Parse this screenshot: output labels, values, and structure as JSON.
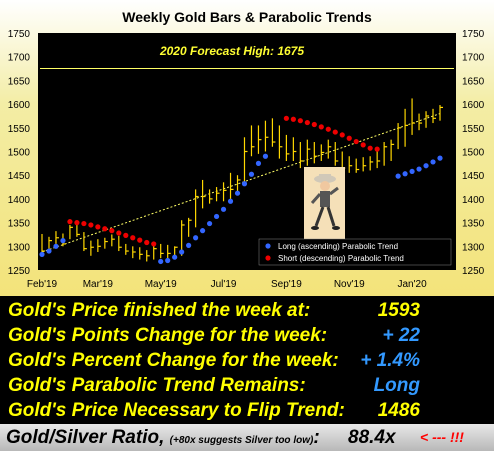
{
  "chart_data": {
    "type": "line",
    "title": "Weekly Gold Bars & Parabolic Trends",
    "annotation": "2020 Forecast High:  1675",
    "forecast_high": 1675,
    "ylim": [
      1250,
      1750
    ],
    "yticks": [
      1250,
      1300,
      1350,
      1400,
      1450,
      1500,
      1550,
      1600,
      1650,
      1700,
      1750
    ],
    "xticks": [
      {
        "label": "Feb'19",
        "week": 0
      },
      {
        "label": "Mar'19",
        "week": 8
      },
      {
        "label": "May'19",
        "week": 17
      },
      {
        "label": "Jul'19",
        "week": 26
      },
      {
        "label": "Sep'19",
        "week": 35
      },
      {
        "label": "Nov'19",
        "week": 44
      },
      {
        "label": "Jan'20",
        "week": 53
      }
    ],
    "legend": {
      "placement": "bottom-right",
      "entries": [
        {
          "label": "Long (ascending) Parabolic Trend",
          "color": "#3366ff"
        },
        {
          "label": "Short (descending) Parabolic Trend",
          "color": "#ee0000"
        }
      ]
    },
    "bars": [
      {
        "week": 0,
        "high": 1326,
        "low": 1282,
        "close": 1290
      },
      {
        "week": 1,
        "high": 1320,
        "low": 1295,
        "close": 1312
      },
      {
        "week": 2,
        "high": 1332,
        "low": 1305,
        "close": 1318
      },
      {
        "week": 3,
        "high": 1327,
        "low": 1300,
        "close": 1305
      },
      {
        "week": 4,
        "high": 1345,
        "low": 1315,
        "close": 1340
      },
      {
        "week": 5,
        "high": 1345,
        "low": 1320,
        "close": 1325
      },
      {
        "week": 6,
        "high": 1330,
        "low": 1290,
        "close": 1295
      },
      {
        "week": 7,
        "high": 1312,
        "low": 1280,
        "close": 1298
      },
      {
        "week": 8,
        "high": 1315,
        "low": 1288,
        "close": 1300
      },
      {
        "week": 9,
        "high": 1318,
        "low": 1295,
        "close": 1310
      },
      {
        "week": 10,
        "high": 1325,
        "low": 1300,
        "close": 1315
      },
      {
        "week": 11,
        "high": 1322,
        "low": 1290,
        "close": 1298
      },
      {
        "week": 12,
        "high": 1305,
        "low": 1282,
        "close": 1290
      },
      {
        "week": 13,
        "high": 1300,
        "low": 1275,
        "close": 1288
      },
      {
        "week": 14,
        "high": 1298,
        "low": 1272,
        "close": 1283
      },
      {
        "week": 15,
        "high": 1292,
        "low": 1268,
        "close": 1280
      },
      {
        "week": 16,
        "high": 1302,
        "low": 1272,
        "close": 1295
      },
      {
        "week": 17,
        "high": 1305,
        "low": 1275,
        "close": 1285
      },
      {
        "week": 18,
        "high": 1303,
        "low": 1268,
        "close": 1285
      },
      {
        "week": 19,
        "high": 1300,
        "low": 1275,
        "close": 1298
      },
      {
        "week": 20,
        "high": 1355,
        "low": 1280,
        "close": 1345
      },
      {
        "week": 21,
        "high": 1360,
        "low": 1320,
        "close": 1355
      },
      {
        "week": 22,
        "high": 1420,
        "low": 1340,
        "close": 1405
      },
      {
        "week": 23,
        "high": 1440,
        "low": 1380,
        "close": 1405
      },
      {
        "week": 24,
        "high": 1420,
        "low": 1390,
        "close": 1400
      },
      {
        "week": 25,
        "high": 1425,
        "low": 1395,
        "close": 1412
      },
      {
        "week": 26,
        "high": 1435,
        "low": 1395,
        "close": 1418
      },
      {
        "week": 27,
        "high": 1455,
        "low": 1400,
        "close": 1420
      },
      {
        "week": 28,
        "high": 1450,
        "low": 1410,
        "close": 1440
      },
      {
        "week": 29,
        "high": 1530,
        "low": 1430,
        "close": 1500
      },
      {
        "week": 30,
        "high": 1555,
        "low": 1490,
        "close": 1510
      },
      {
        "week": 31,
        "high": 1555,
        "low": 1495,
        "close": 1525
      },
      {
        "week": 32,
        "high": 1565,
        "low": 1500,
        "close": 1530
      },
      {
        "week": 33,
        "high": 1570,
        "low": 1510,
        "close": 1520
      },
      {
        "week": 34,
        "high": 1555,
        "low": 1485,
        "close": 1510
      },
      {
        "week": 35,
        "high": 1535,
        "low": 1480,
        "close": 1495
      },
      {
        "week": 36,
        "high": 1530,
        "low": 1480,
        "close": 1500
      },
      {
        "week": 37,
        "high": 1520,
        "low": 1465,
        "close": 1480
      },
      {
        "week": 38,
        "high": 1525,
        "low": 1470,
        "close": 1505
      },
      {
        "week": 39,
        "high": 1520,
        "low": 1475,
        "close": 1490
      },
      {
        "week": 40,
        "high": 1515,
        "low": 1480,
        "close": 1498
      },
      {
        "week": 41,
        "high": 1525,
        "low": 1485,
        "close": 1510
      },
      {
        "week": 42,
        "high": 1520,
        "low": 1470,
        "close": 1480
      },
      {
        "week": 43,
        "high": 1500,
        "low": 1455,
        "close": 1465
      },
      {
        "week": 44,
        "high": 1490,
        "low": 1455,
        "close": 1470
      },
      {
        "week": 45,
        "high": 1485,
        "low": 1455,
        "close": 1462
      },
      {
        "week": 46,
        "high": 1488,
        "low": 1458,
        "close": 1470
      },
      {
        "week": 47,
        "high": 1490,
        "low": 1460,
        "close": 1478
      },
      {
        "week": 48,
        "high": 1500,
        "low": 1465,
        "close": 1480
      },
      {
        "week": 49,
        "high": 1520,
        "low": 1470,
        "close": 1510
      },
      {
        "week": 50,
        "high": 1525,
        "low": 1480,
        "close": 1515
      },
      {
        "week": 51,
        "high": 1560,
        "low": 1505,
        "close": 1550
      },
      {
        "week": 52,
        "high": 1590,
        "low": 1510,
        "close": 1555
      },
      {
        "week": 53,
        "high": 1612,
        "low": 1535,
        "close": 1560
      },
      {
        "week": 54,
        "high": 1580,
        "low": 1545,
        "close": 1560
      },
      {
        "week": 55,
        "high": 1585,
        "low": 1550,
        "close": 1575
      },
      {
        "week": 56,
        "high": 1590,
        "low": 1560,
        "close": 1570
      },
      {
        "week": 57,
        "high": 1598,
        "low": 1565,
        "close": 1593
      }
    ],
    "trendline": {
      "start": {
        "week": 0,
        "value": 1288
      },
      "end": {
        "week": 57,
        "value": 1580
      }
    },
    "long_trend": [
      {
        "week": 0,
        "value": 1283
      },
      {
        "week": 1,
        "value": 1290
      },
      {
        "week": 2,
        "value": 1300
      },
      {
        "week": 3,
        "value": 1312
      },
      {
        "week": 17,
        "value": 1268
      },
      {
        "week": 18,
        "value": 1270
      },
      {
        "week": 19,
        "value": 1277
      },
      {
        "week": 20,
        "value": 1288
      },
      {
        "week": 21,
        "value": 1302
      },
      {
        "week": 22,
        "value": 1318
      },
      {
        "week": 23,
        "value": 1333
      },
      {
        "week": 24,
        "value": 1348
      },
      {
        "week": 25,
        "value": 1363
      },
      {
        "week": 26,
        "value": 1378
      },
      {
        "week": 27,
        "value": 1395
      },
      {
        "week": 28,
        "value": 1412
      },
      {
        "week": 29,
        "value": 1432
      },
      {
        "week": 30,
        "value": 1452
      },
      {
        "week": 31,
        "value": 1475
      },
      {
        "week": 32,
        "value": 1490
      },
      {
        "week": 51,
        "value": 1448
      },
      {
        "week": 52,
        "value": 1453
      },
      {
        "week": 53,
        "value": 1458
      },
      {
        "week": 54,
        "value": 1463
      },
      {
        "week": 55,
        "value": 1470
      },
      {
        "week": 56,
        "value": 1478
      },
      {
        "week": 57,
        "value": 1486
      }
    ],
    "short_trend": [
      {
        "week": 4,
        "value": 1352
      },
      {
        "week": 5,
        "value": 1350
      },
      {
        "week": 6,
        "value": 1348
      },
      {
        "week": 7,
        "value": 1345
      },
      {
        "week": 8,
        "value": 1341
      },
      {
        "week": 9,
        "value": 1337
      },
      {
        "week": 10,
        "value": 1333
      },
      {
        "week": 11,
        "value": 1328
      },
      {
        "week": 12,
        "value": 1323
      },
      {
        "week": 13,
        "value": 1318
      },
      {
        "week": 14,
        "value": 1313
      },
      {
        "week": 15,
        "value": 1308
      },
      {
        "week": 16,
        "value": 1305
      },
      {
        "week": 35,
        "value": 1570
      },
      {
        "week": 36,
        "value": 1568
      },
      {
        "week": 37,
        "value": 1565
      },
      {
        "week": 38,
        "value": 1561
      },
      {
        "week": 39,
        "value": 1557
      },
      {
        "week": 40,
        "value": 1552
      },
      {
        "week": 41,
        "value": 1547
      },
      {
        "week": 42,
        "value": 1541
      },
      {
        "week": 43,
        "value": 1535
      },
      {
        "week": 44,
        "value": 1528
      },
      {
        "week": 45,
        "value": 1521
      },
      {
        "week": 46,
        "value": 1514
      },
      {
        "week": 47,
        "value": 1507
      },
      {
        "week": 48,
        "value": 1505
      }
    ]
  },
  "stats": [
    {
      "label": "Gold's Price finished the week at:",
      "value": "1593",
      "color": "yellow"
    },
    {
      "label": "Gold's Points Change for the week:",
      "value": "+ 22",
      "color": "blue"
    },
    {
      "label": "Gold's Percent Change for the week:",
      "value": "+ 1.4%",
      "color": "blue"
    },
    {
      "label": "Gold's Parabolic Trend Remains:",
      "value": "Long",
      "color": "blue"
    },
    {
      "label": "Gold's Price Necessary to Flip Trend:",
      "value": "1486",
      "color": "yellow"
    }
  ],
  "ratio": {
    "label": "Gold/Silver Ratio,",
    "note": "(+80x suggests Silver too low)",
    "colon": ":",
    "value": "88.4x",
    "arrow": "< --- !!!"
  }
}
